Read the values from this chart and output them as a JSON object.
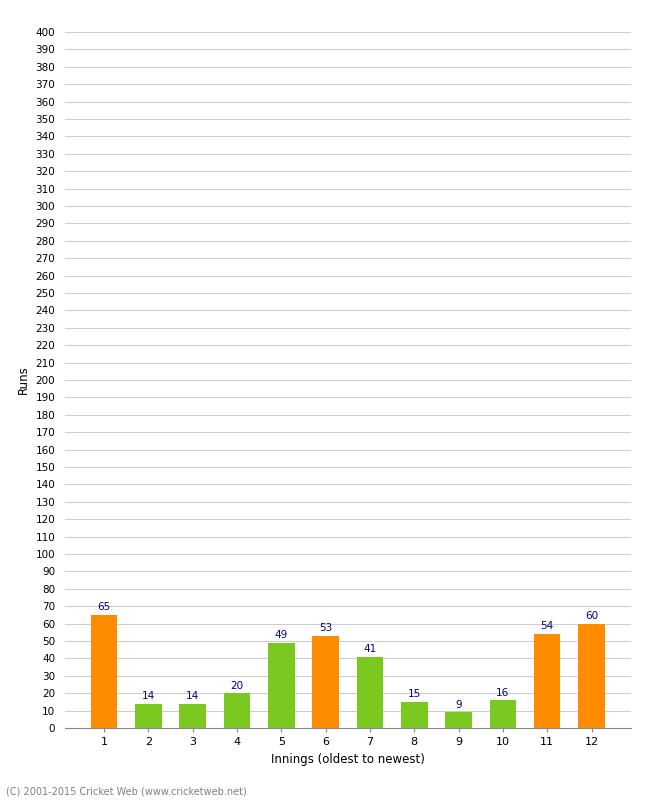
{
  "categories": [
    1,
    2,
    3,
    4,
    5,
    6,
    7,
    8,
    9,
    10,
    11,
    12
  ],
  "values": [
    65,
    14,
    14,
    20,
    49,
    53,
    41,
    15,
    9,
    16,
    54,
    60
  ],
  "colors": [
    "#FF8C00",
    "#7BC820",
    "#7BC820",
    "#7BC820",
    "#7BC820",
    "#FF8C00",
    "#7BC820",
    "#7BC820",
    "#7BC820",
    "#7BC820",
    "#FF8C00",
    "#FF8C00"
  ],
  "xlabel": "Innings (oldest to newest)",
  "ylabel": "Runs",
  "ylim": [
    0,
    400
  ],
  "ytick_step": 10,
  "value_color": "#00008B",
  "background_color": "#FFFFFF",
  "grid_color": "#CCCCCC",
  "footer": "(C) 2001-2015 Cricket Web (www.cricketweb.net)"
}
